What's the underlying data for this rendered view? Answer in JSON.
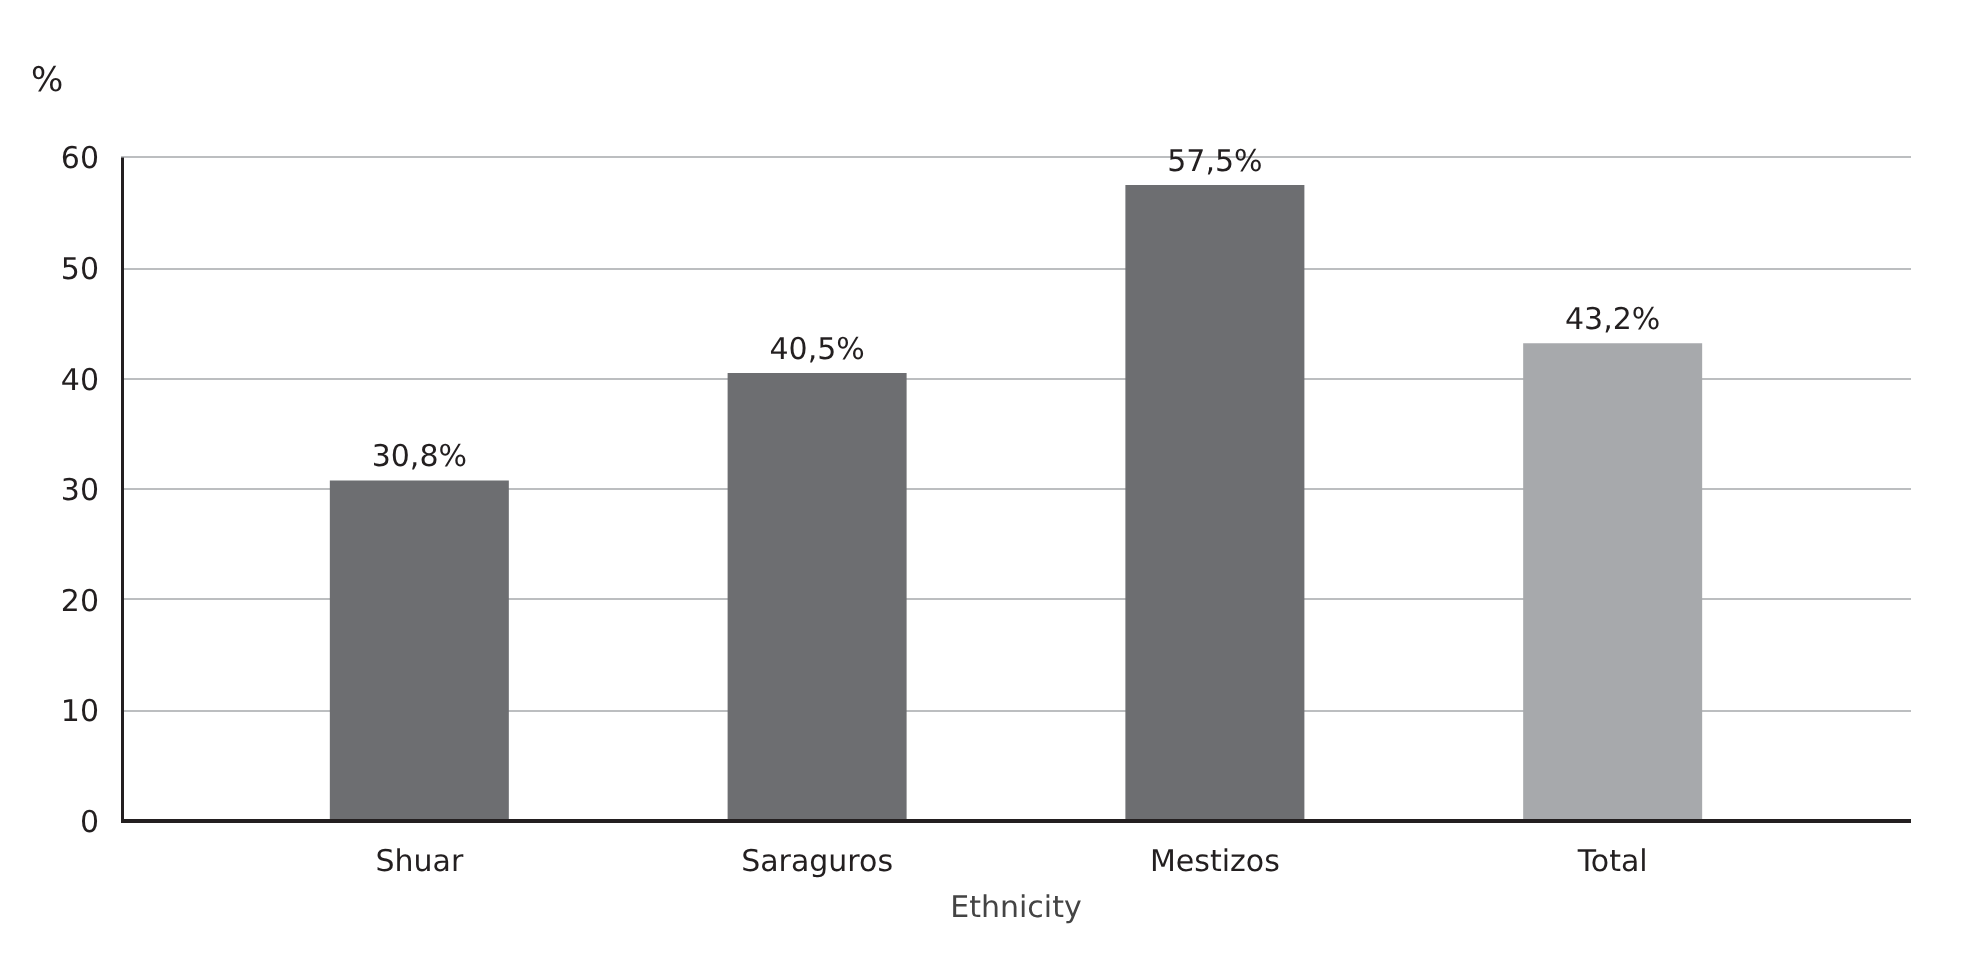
{
  "chart_data": {
    "type": "bar",
    "xlabel": "Ethnicity",
    "ylabel": "%",
    "categories": [
      "Shuar",
      "Saraguros",
      "Mestizos",
      "Total"
    ],
    "values": [
      30.8,
      40.5,
      57.5,
      43.2
    ],
    "colors": [
      "#6d6e71",
      "#6d6e71",
      "#6d6e71",
      "#a7a9ac"
    ],
    "value_labels": [
      "30,8%",
      "40,5%",
      "57,5%",
      "43,2%"
    ],
    "ylim": [
      0,
      60
    ],
    "yticks": [
      0,
      10,
      20,
      30,
      40,
      50,
      60
    ],
    "grid": "y"
  }
}
